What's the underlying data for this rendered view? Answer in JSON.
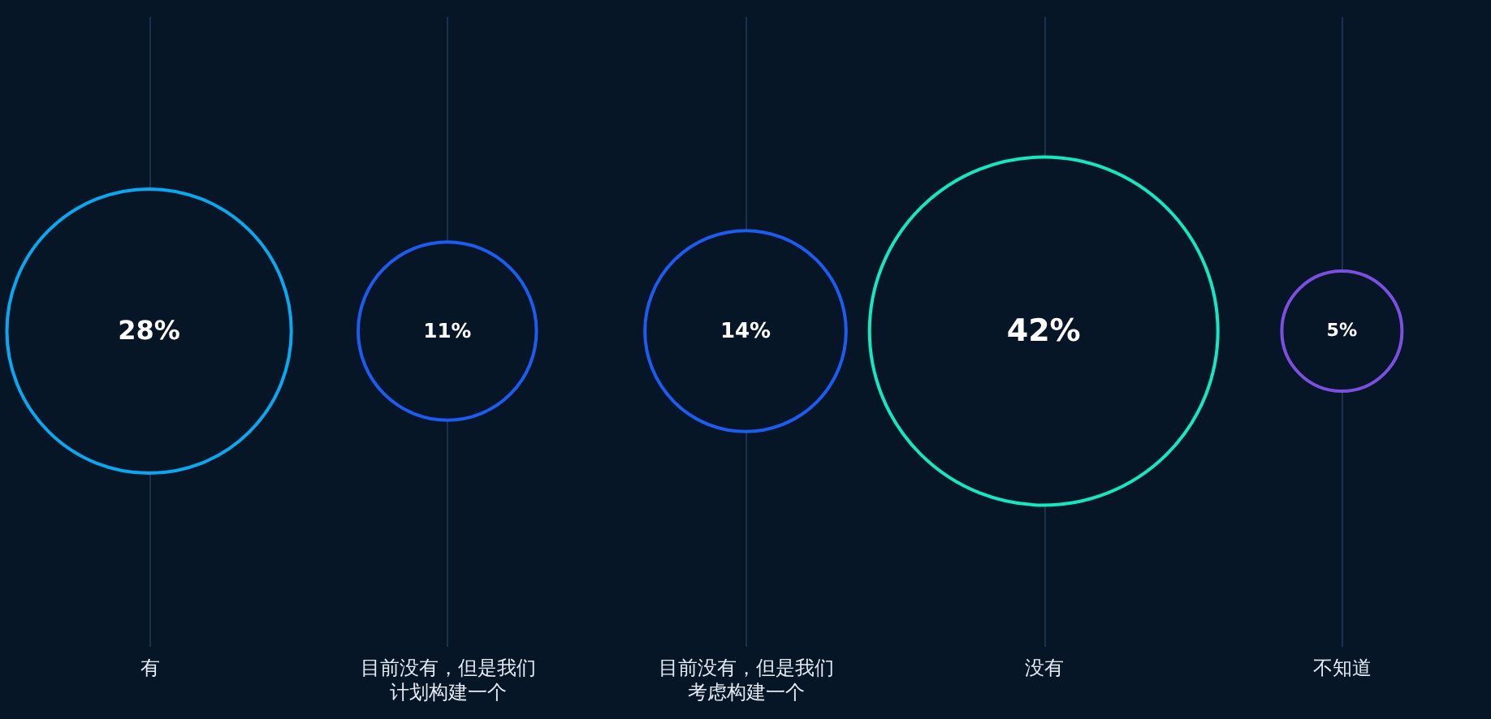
{
  "chart_data": {
    "type": "other",
    "categories": [
      "有",
      "目前没有，但是我们计划构建一个",
      "目前没有，但是我们考虑构建一个",
      "没有",
      "不知道"
    ],
    "values": [
      28,
      11,
      14,
      42,
      5
    ],
    "value_labels": [
      "28%",
      "11%",
      "14%",
      "42%",
      "5%"
    ],
    "colors": [
      "#0aa8f0",
      "#1d5cf0",
      "#1d5cf0",
      "#14e8c0",
      "#7b4fe0"
    ]
  }
}
